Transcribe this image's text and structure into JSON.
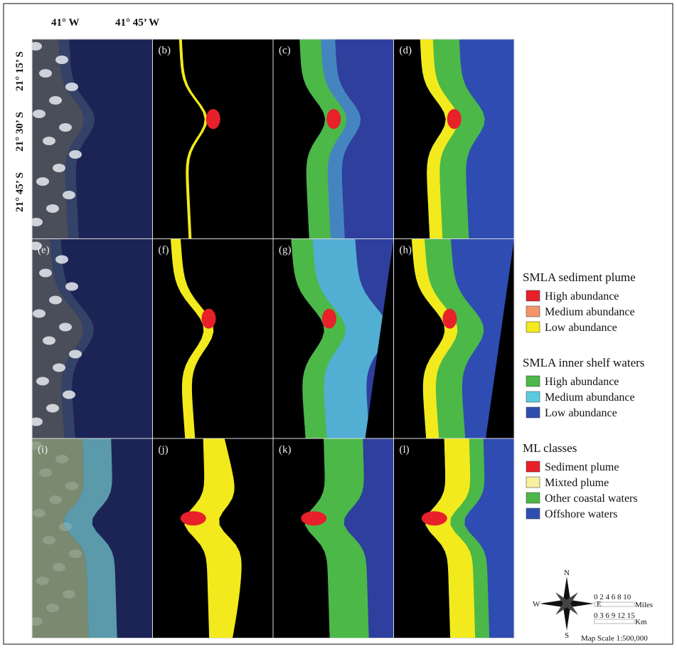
{
  "axis_labels": {
    "longitude": [
      "41° W",
      "41° 45’ W"
    ],
    "latitude": [
      "21° 15’ S",
      "21° 30’ S",
      "21° 45’ S"
    ]
  },
  "panel_labels": [
    "(b)",
    "(c)",
    "(d)",
    "(e)",
    "(f)",
    "(g)",
    "(h)",
    "(i)",
    "(j)",
    "(k)",
    "(l)"
  ],
  "legend": [
    {
      "title": "SMLA sediment plume",
      "items": [
        {
          "label": "High abundance",
          "color": "#e8202a"
        },
        {
          "label": "Medium abundance",
          "color": "#f4946a"
        },
        {
          "label": "Low abundance",
          "color": "#f2ea1c"
        }
      ]
    },
    {
      "title": "SMLA inner shelf waters",
      "items": [
        {
          "label": "High abundance",
          "color": "#4cb848"
        },
        {
          "label": "Medium abundance",
          "color": "#5ccbe0"
        },
        {
          "label": "Low abundance",
          "color": "#2f4fb0"
        }
      ]
    },
    {
      "title": "ML classes",
      "items": [
        {
          "label": "Sediment plume",
          "color": "#e8202a"
        },
        {
          "label": "Mixted plume",
          "color": "#f6f0a0"
        },
        {
          "label": "Other coastal waters",
          "color": "#4cb848"
        },
        {
          "label": "Offshore waters",
          "color": "#2f4fb0"
        }
      ]
    }
  ],
  "compass": {
    "n": "N",
    "s": "S",
    "e": "E",
    "w": "W"
  },
  "scale": {
    "miles_ticks": "0 2 4 6 8 10",
    "miles_unit": "Miles",
    "km_ticks": "0 3 6 9 12 15",
    "km_unit": "Km",
    "map_scale": "Map Scale 1:500,000"
  }
}
